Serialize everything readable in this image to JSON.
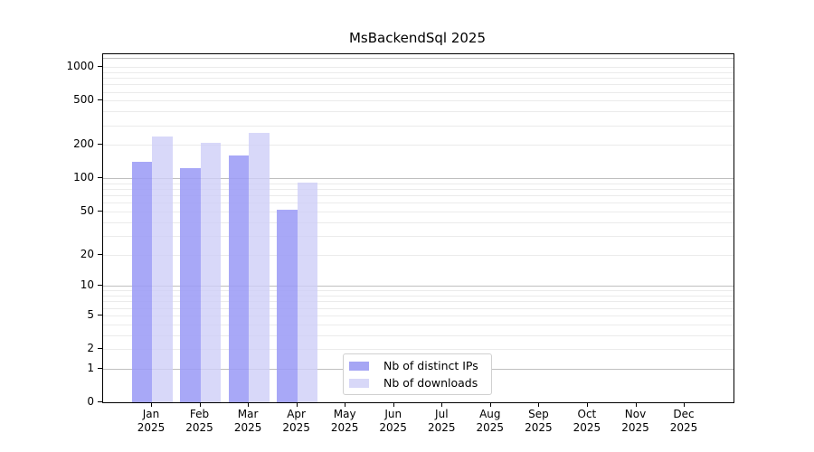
{
  "chart_data": {
    "type": "bar",
    "title": "MsBackendSql 2025",
    "categories": [
      "Jan",
      "Feb",
      "Mar",
      "Apr",
      "May",
      "Jun",
      "Jul",
      "Aug",
      "Sep",
      "Oct",
      "Nov",
      "Dec"
    ],
    "x_year_label": "2025",
    "series": [
      {
        "name": "Nb of distinct IPs",
        "color": "rgba(155,155,246,0.87)",
        "legend_color": "#a6a6f4",
        "values": [
          140,
          123,
          160,
          52,
          0,
          0,
          0,
          0,
          0,
          0,
          0,
          0
        ]
      },
      {
        "name": "Nb of downloads",
        "color": "rgba(206,206,248,0.8)",
        "legend_color": "#d8d8f8",
        "values": [
          237,
          208,
          258,
          92,
          0,
          0,
          0,
          0,
          0,
          0,
          0,
          0
        ]
      }
    ],
    "y_scale": "log1p",
    "ylim": [
      0,
      1300
    ],
    "yticks": [
      1000,
      500,
      200,
      100,
      50,
      20,
      10,
      5,
      2,
      1,
      0
    ],
    "grid": "horizontal",
    "grid_major_values": [
      1,
      10,
      100,
      1200
    ],
    "grid_minor_values": [
      2,
      3,
      4,
      5,
      6,
      7,
      8,
      9,
      20,
      30,
      40,
      50,
      60,
      70,
      80,
      90,
      200,
      300,
      400,
      500,
      600,
      700,
      800,
      900,
      1000
    ],
    "legend_position": "lower center",
    "colors": {
      "grid_minor": "#ebebeb",
      "grid_major": "#bfbfbf",
      "axis": "#000000"
    }
  }
}
